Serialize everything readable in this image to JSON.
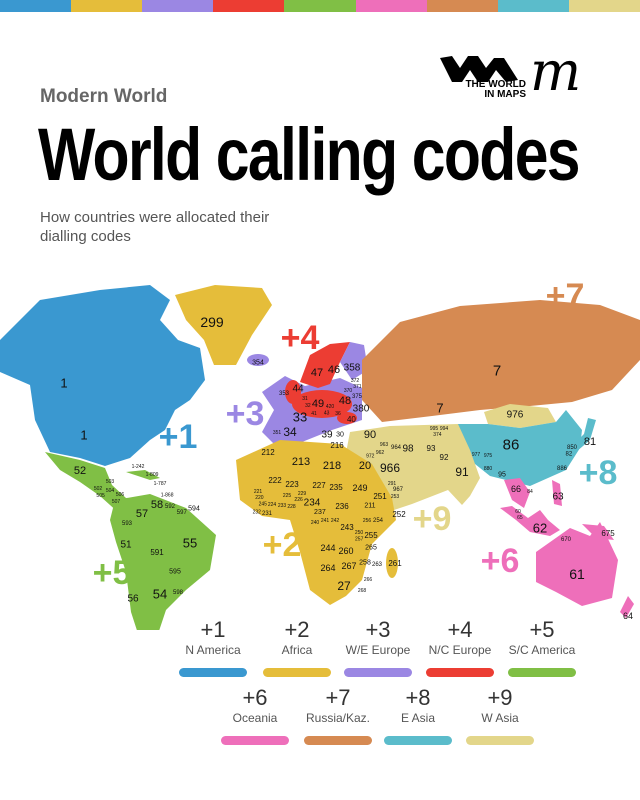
{
  "header": {
    "series": "Modern World",
    "title": "World calling codes",
    "subtitle": "How countries were allocated their dialling codes",
    "logo_text": "THE WORLD IN MAPS",
    "logo_mark": "m"
  },
  "colors": {
    "n_america": "#3a98d0",
    "africa": "#e5bd3a",
    "we_europe": "#9b87e3",
    "nc_europe": "#ec3d33",
    "sc_america": "#80bf45",
    "oceania": "#ee6fba",
    "russia_kaz": "#d68a52",
    "e_asia": "#5bbccb",
    "w_asia": "#e3d68a"
  },
  "zones": [
    {
      "code": "+1",
      "label": "N America",
      "color": "#3a98d0"
    },
    {
      "code": "+2",
      "label": "Africa",
      "color": "#e5bd3a"
    },
    {
      "code": "+3",
      "label": "W/E Europe",
      "color": "#9b87e3"
    },
    {
      "code": "+4",
      "label": "N/C Europe",
      "color": "#ec3d33"
    },
    {
      "code": "+5",
      "label": "S/C America",
      "color": "#80bf45"
    },
    {
      "code": "+6",
      "label": "Oceania",
      "color": "#ee6fba"
    },
    {
      "code": "+7",
      "label": "Russia/Kaz.",
      "color": "#d68a52"
    },
    {
      "code": "+8",
      "label": "E Asia",
      "color": "#5bbccb"
    },
    {
      "code": "+9",
      "label": "W Asia",
      "color": "#e3d68a"
    }
  ],
  "map": {
    "country_codes": [
      "299",
      "354",
      "1",
      "1",
      "52",
      "1-242",
      "503",
      "1-809",
      "1-787",
      "502",
      "504",
      "505",
      "506",
      "507",
      "1-868",
      "58",
      "592",
      "597",
      "594",
      "57",
      "593",
      "51",
      "55",
      "591",
      "595",
      "56",
      "54",
      "598",
      "47",
      "46",
      "358",
      "44",
      "353",
      "31",
      "32",
      "49",
      "48",
      "33",
      "41",
      "43",
      "420",
      "375",
      "380",
      "40",
      "34",
      "351",
      "39",
      "30",
      "36",
      "372",
      "371",
      "370",
      "7",
      "7",
      "976",
      "86",
      "850",
      "82",
      "81",
      "886",
      "63",
      "66",
      "84",
      "60",
      "65",
      "62",
      "670",
      "675",
      "61",
      "64",
      "90",
      "964",
      "98",
      "93",
      "92",
      "91",
      "977",
      "975",
      "880",
      "95",
      "966",
      "967",
      "963",
      "962",
      "972",
      "995",
      "994",
      "374",
      "212",
      "213",
      "216",
      "218",
      "20",
      "222",
      "223",
      "227",
      "235",
      "249",
      "221",
      "220",
      "245",
      "224",
      "232",
      "231",
      "225",
      "226",
      "233",
      "228",
      "229",
      "234",
      "237",
      "236",
      "211",
      "251",
      "291",
      "253",
      "252",
      "240",
      "241",
      "242",
      "243",
      "256",
      "250",
      "257",
      "254",
      "255",
      "244",
      "260",
      "265",
      "258",
      "263",
      "264",
      "267",
      "27",
      "266",
      "268",
      "261"
    ]
  }
}
